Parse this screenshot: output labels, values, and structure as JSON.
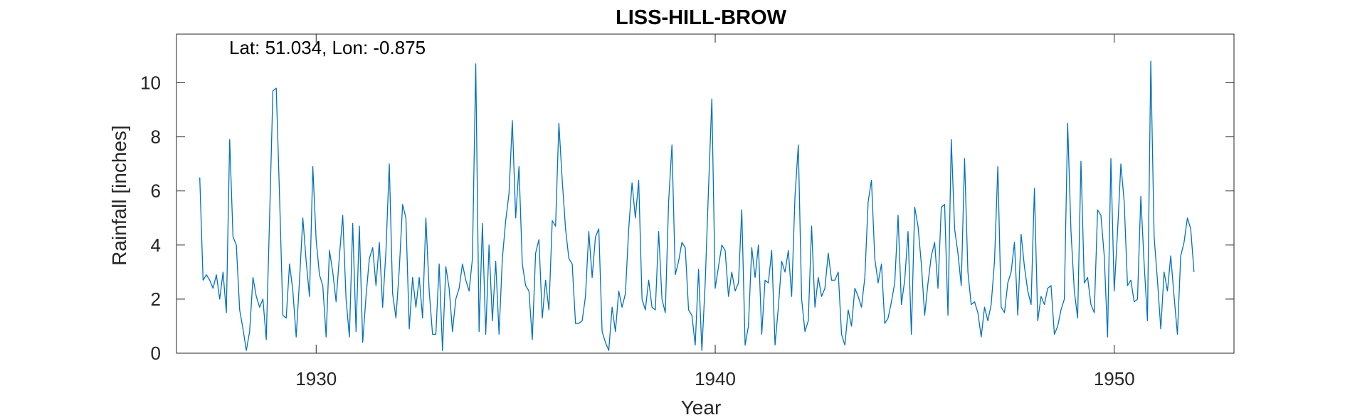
{
  "chart_data": {
    "type": "line",
    "title": "LISS-HILL-BROW",
    "annotation": "Lat: 51.034, Lon: -0.875",
    "xlabel": "Year",
    "ylabel": "Rainfall [inches]",
    "xlim": [
      1926.5,
      1953
    ],
    "ylim": [
      0,
      11.8
    ],
    "xticks": [
      1930,
      1940,
      1950
    ],
    "yticks": [
      0,
      2,
      4,
      6,
      8,
      10
    ],
    "grid": false,
    "line_color": "#0072BD",
    "series": [
      {
        "x_start": 1927.083,
        "x_step": 0.08333,
        "values": [
          6.5,
          2.7,
          2.9,
          2.7,
          2.4,
          2.9,
          2.0,
          3.0,
          1.5,
          7.9,
          4.3,
          4.0,
          1.6,
          0.9,
          0.1,
          0.8,
          2.8,
          2.1,
          1.7,
          2.0,
          0.5,
          5.0,
          9.7,
          9.8,
          5.8,
          1.4,
          1.3,
          3.3,
          2.3,
          0.6,
          2.7,
          5.0,
          3.4,
          2.1,
          6.9,
          4.2,
          2.9,
          2.5,
          0.6,
          3.8,
          3.0,
          1.9,
          3.6,
          5.1,
          2.0,
          0.6,
          4.8,
          0.8,
          4.7,
          0.4,
          2.1,
          3.5,
          3.9,
          2.5,
          4.1,
          1.7,
          3.8,
          7.0,
          2.2,
          1.3,
          3.1,
          5.5,
          5.0,
          0.9,
          2.8,
          1.7,
          2.8,
          1.3,
          5.0,
          2.3,
          0.7,
          0.7,
          3.3,
          0.1,
          3.2,
          2.4,
          0.8,
          2.0,
          2.4,
          3.3,
          2.7,
          2.3,
          3.5,
          10.7,
          0.8,
          4.8,
          0.7,
          4.0,
          1.2,
          3.4,
          0.7,
          3.5,
          4.9,
          5.9,
          8.6,
          5.0,
          6.9,
          3.3,
          2.5,
          2.3,
          0.5,
          3.7,
          4.2,
          1.3,
          2.7,
          1.6,
          4.9,
          4.7,
          8.5,
          6.4,
          4.6,
          3.5,
          3.3,
          1.1,
          1.1,
          1.2,
          2.1,
          4.5,
          2.8,
          4.3,
          4.6,
          0.8,
          0.4,
          0.1,
          1.7,
          0.8,
          2.3,
          1.7,
          2.2,
          4.6,
          6.3,
          5.0,
          6.4,
          2.0,
          1.6,
          2.7,
          1.7,
          1.6,
          4.5,
          2.0,
          1.5,
          5.6,
          7.7,
          2.9,
          3.4,
          4.1,
          3.9,
          1.6,
          1.4,
          0.3,
          3.1,
          0.1,
          2.6,
          6.1,
          9.4,
          2.4,
          3.2,
          4.0,
          3.8,
          2.1,
          3.0,
          2.3,
          2.6,
          5.3,
          0.3,
          1.0,
          3.9,
          2.8,
          4.0,
          0.7,
          2.7,
          2.6,
          3.8,
          0.3,
          1.7,
          3.4,
          3.0,
          3.8,
          2.1,
          5.8,
          7.7,
          2.0,
          0.8,
          1.2,
          4.7,
          1.7,
          2.8,
          2.1,
          2.4,
          3.7,
          2.7,
          2.7,
          3.0,
          0.7,
          0.3,
          1.6,
          1.0,
          2.4,
          2.1,
          1.7,
          2.8,
          5.6,
          6.4,
          3.5,
          2.6,
          3.3,
          1.1,
          1.3,
          1.9,
          2.6,
          5.1,
          1.8,
          2.7,
          4.5,
          0.7,
          5.4,
          4.7,
          3.3,
          1.4,
          2.6,
          3.6,
          4.1,
          2.4,
          5.4,
          5.5,
          1.4,
          7.9,
          4.6,
          3.7,
          2.5,
          7.2,
          3.0,
          1.8,
          1.9,
          1.5,
          0.6,
          1.7,
          1.2,
          1.8,
          3.4,
          6.9,
          1.7,
          1.5,
          2.6,
          3.0,
          4.1,
          1.4,
          4.4,
          3.2,
          2.3,
          1.8,
          6.1,
          1.2,
          2.1,
          1.8,
          2.4,
          2.5,
          0.7,
          1.0,
          1.6,
          2.0,
          8.5,
          4.5,
          2.3,
          1.3,
          7.1,
          2.6,
          2.8,
          1.8,
          1.5,
          5.3,
          5.1,
          3.6,
          0.6,
          7.2,
          2.3,
          4.5,
          7.0,
          5.6,
          2.5,
          2.7,
          1.9,
          2.0,
          5.8,
          3.3,
          1.2,
          10.8,
          4.3,
          2.7,
          0.9,
          3.0,
          2.3,
          3.6,
          2.1,
          0.7,
          3.6,
          4.1,
          5.0,
          4.6,
          3.0
        ]
      }
    ]
  }
}
